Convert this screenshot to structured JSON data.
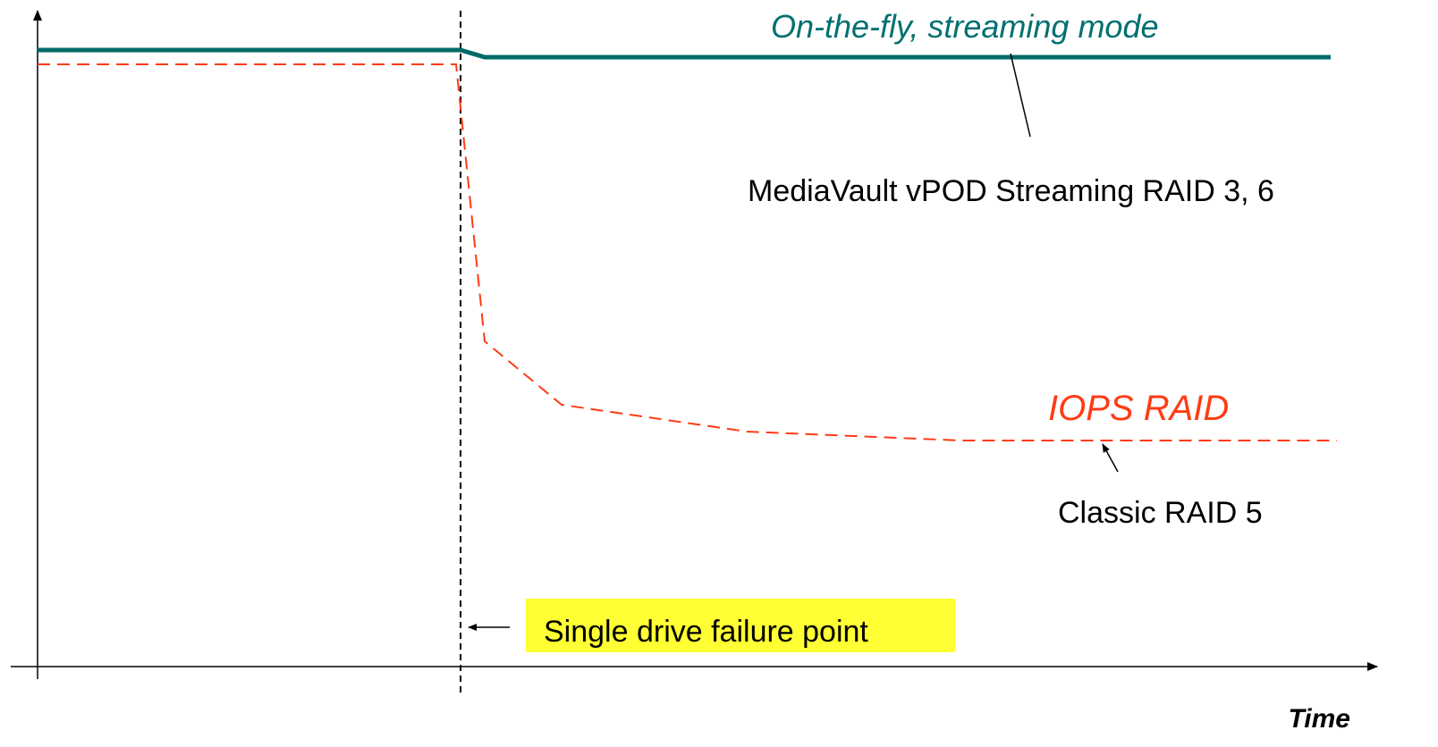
{
  "labels": {
    "streaming_mode": "On-the-fly, streaming mode",
    "streaming_product": "MediaVault vPOD Streaming RAID 3, 6",
    "iops_raid": "IOPS RAID",
    "classic_raid": "Classic RAID 5",
    "failure_point": "Single drive failure point",
    "x_axis": "Time"
  }
}
